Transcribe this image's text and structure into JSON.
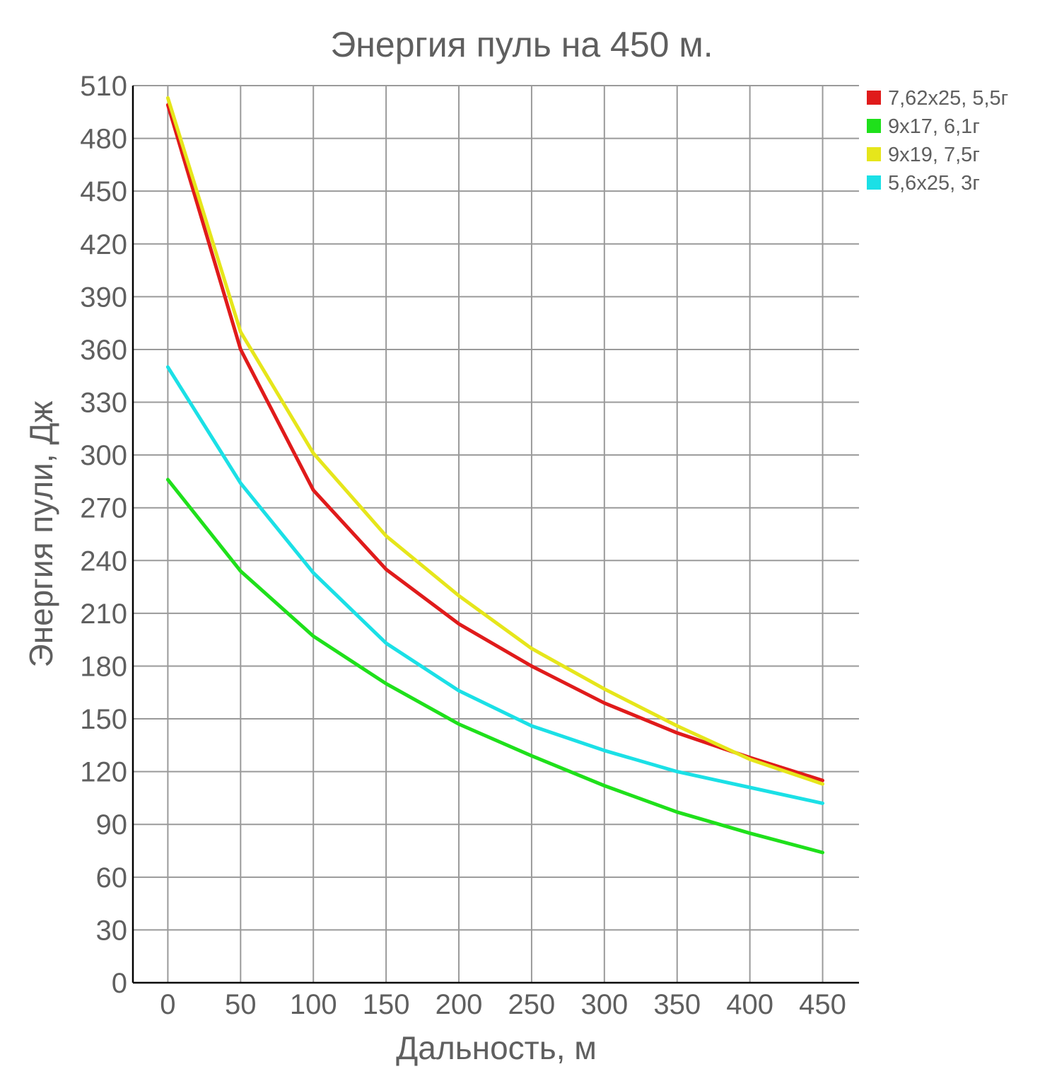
{
  "chart_data": {
    "type": "line",
    "title": "Энергия пуль на 450 м.",
    "xlabel": "Дальность, м",
    "ylabel": "Энергия пули, Дж",
    "x": [
      0,
      50,
      100,
      150,
      200,
      250,
      300,
      350,
      400,
      450
    ],
    "x_ticks": [
      "0",
      "50",
      "100",
      "150",
      "200",
      "250",
      "300",
      "350",
      "400",
      "450"
    ],
    "y_ticks": [
      "0",
      "30",
      "60",
      "90",
      "120",
      "150",
      "180",
      "210",
      "240",
      "270",
      "300",
      "330",
      "360",
      "390",
      "420",
      "450",
      "480",
      "510"
    ],
    "xlim": [
      -24,
      475
    ],
    "ylim": [
      0,
      510
    ],
    "grid": true,
    "legend_position": "top-right",
    "series": [
      {
        "name": "7,62x25, 5,5г",
        "color": "#e01b1b",
        "values": [
          499,
          360,
          280,
          235,
          204,
          180,
          159,
          142,
          128,
          115
        ]
      },
      {
        "name": "9x17, 6,1г",
        "color": "#1fe01b",
        "values": [
          286,
          234,
          197,
          170,
          147,
          129,
          112,
          97,
          85,
          74
        ]
      },
      {
        "name": "9x19, 7,5г",
        "color": "#e6e61b",
        "values": [
          503,
          370,
          301,
          254,
          220,
          190,
          167,
          146,
          127,
          113
        ]
      },
      {
        "name": "5,6x25, 3г",
        "color": "#1be0e6",
        "values": [
          350,
          284,
          233,
          193,
          166,
          146,
          132,
          120,
          111,
          102
        ]
      }
    ]
  }
}
